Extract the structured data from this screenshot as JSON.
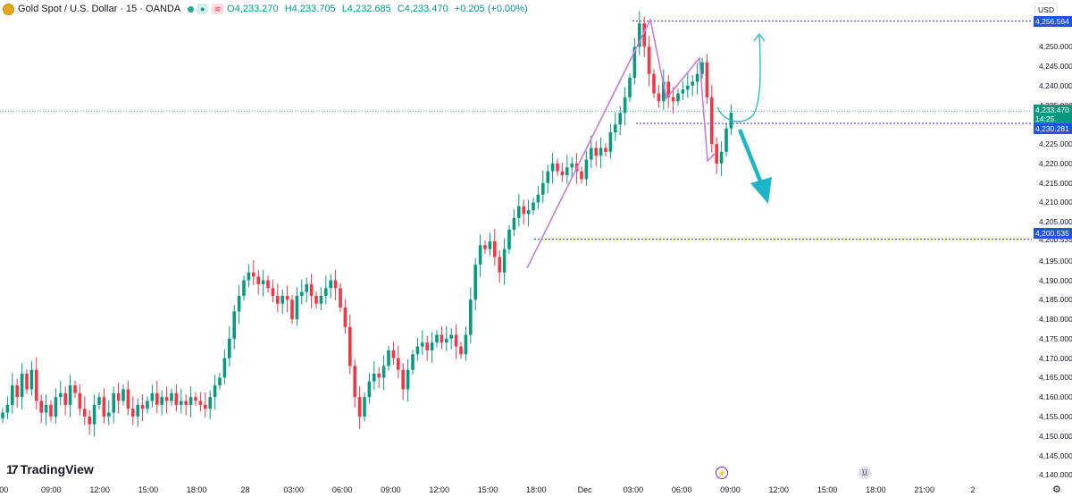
{
  "header": {
    "symbol_title": "Gold Spot / U.S. Dollar · 15 · OANDA",
    "open": "O4,233.270",
    "high": "H4,233.705",
    "low": "L4,232.685",
    "close": "C4,233.470",
    "change": "+0.205 (+0.00%)",
    "open_label": "O",
    "high_label": "H",
    "low_label": "L",
    "close_label": "C"
  },
  "currency": "USD",
  "y_axis": {
    "ticks": [
      "4,250.000",
      "4,245.000",
      "4,240.000",
      "4,235.000",
      "4,230.281",
      "4,225.000",
      "4,220.000",
      "4,215.000",
      "4,210.000",
      "4,205.000",
      "4,200.535",
      "4,195.000",
      "4,190.000",
      "4,185.000",
      "4,180.000",
      "4,175.000",
      "4,170.000",
      "4,165.000",
      "4,160.000",
      "4,155.000",
      "4,150.000",
      "4,145.000",
      "4,140.000"
    ]
  },
  "price_labels": {
    "top_level": "4,256.564",
    "current_price": "4,233.470",
    "countdown": "14:25",
    "mid_level": "4,230.281",
    "low_level": "4,200.535"
  },
  "x_axis": {
    "ticks": [
      ":00",
      "09:00",
      "12:00",
      "15:00",
      "18:00",
      "28",
      "03:00",
      "06:00",
      "09:00",
      "12:00",
      "15:00",
      "18:00",
      "Dec",
      "03:00",
      "06:00",
      "09:00",
      "12:00",
      "15:00",
      "18:00",
      "21:00",
      "2"
    ]
  },
  "logo": "TradingView",
  "colors": {
    "up": "#089981",
    "down": "#f23645",
    "level_line": "#1e3fd0",
    "projection": "#1fb5c8",
    "pattern": "#c77ddb"
  },
  "chart_data": {
    "type": "candlestick",
    "title": "Gold Spot / U.S. Dollar · 15 · OANDA",
    "ylim": [
      4138,
      4262
    ],
    "levels": [
      4256.564,
      4230.281,
      4200.535
    ],
    "current": 4233.47,
    "segments": [
      {
        "t0": 0,
        "v": [
          4156,
          4158,
          4163,
          4160,
          4166,
          4162,
          4167,
          4159,
          4156,
          4158,
          4155,
          4160,
          4161,
          4158,
          4163,
          4161,
          4157,
          4155,
          4153,
          4158,
          4160,
          4155,
          4156,
          4161,
          4159,
          4162,
          4157,
          4155,
          4158,
          4157,
          4159,
          4161,
          4158,
          4160,
          4159,
          4161,
          4158,
          4159,
          4158,
          4160,
          4159,
          4158,
          4157,
          4160,
          4163,
          4165,
          4170,
          4175,
          4182,
          4186,
          4190,
          4192,
          4191,
          4189,
          4190,
          4188,
          4186,
          4184,
          4186,
          4185,
          4180,
          4186,
          4187,
          4189,
          4186,
          4184,
          4186,
          4188,
          4190,
          4188,
          4183,
          4178,
          4168,
          4160,
          4155,
          4160,
          4164,
          4166,
          4165,
          4168,
          4172,
          4170,
          4167,
          4162,
          4167,
          4171,
          4173,
          4174,
          4172,
          4174,
          4176,
          4174,
          4175,
          4176,
          4173,
          4171,
          4176,
          4185,
          4194,
          4199,
          4198,
          4200,
          4196,
          4192,
          4198,
          4203,
          4206,
          4209,
          4207,
          4208,
          4210,
          4212,
          4215,
          4218,
          4220,
          4218,
          4217,
          4219,
          4220,
          4218,
          4216,
          4221,
          4224,
          4222,
          4224,
          4223,
          4228,
          4230,
          4233,
          4237,
          4242,
          4250,
          4256,
          4250,
          4243,
          4238,
          4236,
          4241,
          4237,
          4236,
          4238,
          4239,
          4240,
          4241,
          4243,
          4246,
          4237,
          4225,
          4220,
          4223,
          4229,
          4233
        ]
      },
      {
        "t_last": "06:00"
      }
    ]
  }
}
